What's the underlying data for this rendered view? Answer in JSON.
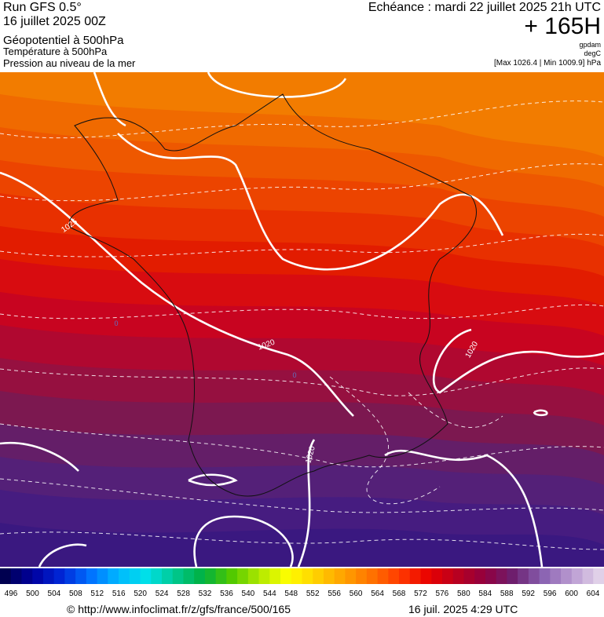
{
  "header": {
    "run": "Run GFS 0.5°",
    "date": "16 juillet 2025 00Z",
    "field1": "Géopotentiel à 500hPa",
    "field2": "Température à 500hPa",
    "field3": "Pression au niveau de la mer",
    "valid": "Echéance : mardi 22 juillet 2025 21h UTC",
    "lead": "+ 165H",
    "unit1": "gpdam",
    "unit2": "degC",
    "range": "[Max 1026.4 | Min 1009.9] hPa"
  },
  "map": {
    "isobar_labels": [
      "1025",
      "1020",
      "1020",
      "1020"
    ],
    "temp_labels": [
      "0",
      "0"
    ]
  },
  "scale": {
    "labels": [
      496,
      500,
      504,
      508,
      512,
      516,
      520,
      524,
      528,
      532,
      536,
      540,
      544,
      548,
      552,
      556,
      560,
      564,
      568,
      572,
      576,
      580,
      584,
      588,
      592,
      596,
      600,
      604
    ]
  },
  "footer": {
    "source": "© http://www.infoclimat.fr/z/gfs/france/500/165",
    "issued": "16 juil. 2025  4:29 UTC"
  }
}
